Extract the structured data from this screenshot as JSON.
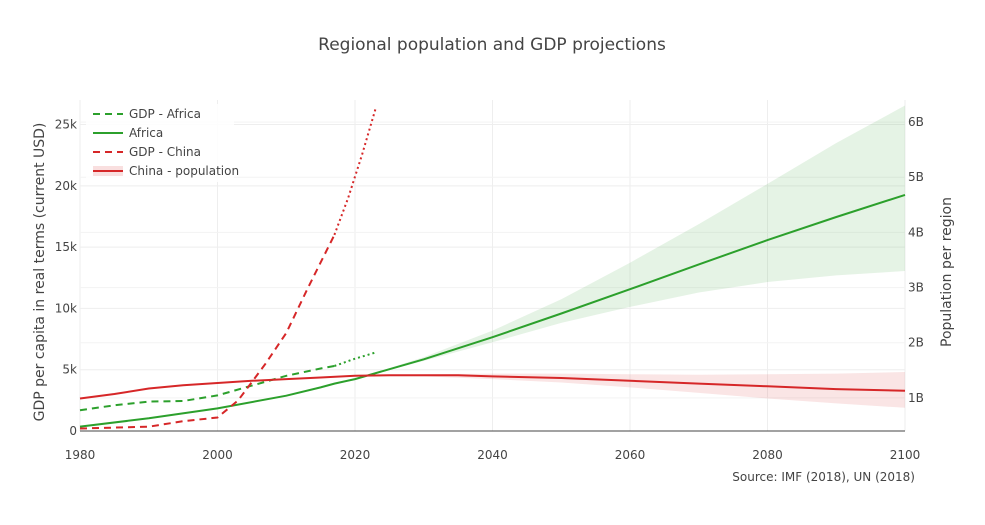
{
  "chart_data": {
    "type": "line",
    "title": "Regional population and GDP projections",
    "source_note": "Source: IMF (2018), UN (2018)",
    "x_axis": {
      "range": [
        1980,
        2100
      ],
      "ticks": [
        1980,
        2000,
        2020,
        2040,
        2060,
        2080,
        2100
      ]
    },
    "y_left": {
      "title": "GDP per capita in real terms (current USD)",
      "range": [
        0,
        27000
      ],
      "ticks": [
        0,
        5000,
        10000,
        15000,
        20000,
        25000
      ],
      "tick_labels": [
        "0",
        "5k",
        "10k",
        "15k",
        "20k",
        "25k"
      ]
    },
    "y_right": {
      "title": "Population per region",
      "range": [
        0.4,
        6.4
      ],
      "ticks": [
        1,
        2,
        3,
        4,
        5,
        6
      ],
      "tick_labels": [
        "1B",
        "2B",
        "3B",
        "4B",
        "5B",
        "6B"
      ]
    },
    "grid": true,
    "legend_position": "top-left",
    "series": [
      {
        "name": "GDP - Africa",
        "axis": "left",
        "color": "#2ca02c",
        "dash": "dashed",
        "x": [
          1980,
          1985,
          1990,
          1995,
          2000,
          2005,
          2010,
          2015,
          2017
        ],
        "y": [
          1700,
          2100,
          2400,
          2450,
          2900,
          3700,
          4500,
          5100,
          5300
        ],
        "projection": {
          "dash": "dotted",
          "x": [
            2017,
            2020,
            2023
          ],
          "y": [
            5300,
            5900,
            6400
          ]
        }
      },
      {
        "name": "Africa",
        "axis": "right",
        "color": "#2ca02c",
        "dash": "solid",
        "x": [
          1980,
          1990,
          2000,
          2010,
          2015,
          2017,
          2020,
          2030,
          2040,
          2050,
          2060,
          2070,
          2080,
          2090,
          2100
        ],
        "y": [
          0.48,
          0.63,
          0.81,
          1.04,
          1.19,
          1.26,
          1.34,
          1.7,
          2.1,
          2.53,
          2.97,
          3.42,
          3.86,
          4.28,
          4.68
        ],
        "band": {
          "x": [
            2017,
            2020,
            2030,
            2040,
            2050,
            2060,
            2070,
            2080,
            2090,
            2100
          ],
          "lower": [
            1.26,
            1.34,
            1.67,
            2.01,
            2.36,
            2.65,
            2.91,
            3.1,
            3.22,
            3.3
          ],
          "upper": [
            1.26,
            1.34,
            1.74,
            2.22,
            2.79,
            3.45,
            4.15,
            4.88,
            5.62,
            6.3
          ]
        }
      },
      {
        "name": "GDP - China",
        "axis": "left",
        "color": "#d62728",
        "dash": "dashed",
        "x": [
          1980,
          1990,
          1995,
          2000,
          2003,
          2005,
          2007,
          2010,
          2013,
          2017
        ],
        "y": [
          200,
          350,
          800,
          1100,
          2500,
          4000,
          5500,
          8000,
          11500,
          16000
        ],
        "projection": {
          "dash": "dotted",
          "x": [
            2017,
            2019,
            2021,
            2023
          ],
          "y": [
            16000,
            19000,
            22500,
            26300
          ]
        }
      },
      {
        "name": "China - population",
        "axis": "right",
        "color": "#d62728",
        "dash": "solid",
        "x": [
          1980,
          1985,
          1990,
          1995,
          2000,
          2005,
          2010,
          2015,
          2020,
          2025,
          2030,
          2035,
          2040,
          2050,
          2060,
          2070,
          2080,
          2090,
          2100
        ],
        "y": [
          0.99,
          1.07,
          1.17,
          1.23,
          1.27,
          1.31,
          1.34,
          1.37,
          1.4,
          1.41,
          1.41,
          1.41,
          1.39,
          1.36,
          1.31,
          1.26,
          1.21,
          1.16,
          1.13
        ],
        "band": {
          "x": [
            2020,
            2030,
            2040,
            2050,
            2060,
            2070,
            2080,
            2090,
            2100
          ],
          "lower": [
            1.4,
            1.39,
            1.34,
            1.28,
            1.19,
            1.09,
            0.99,
            0.9,
            0.82
          ],
          "upper": [
            1.4,
            1.43,
            1.44,
            1.44,
            1.43,
            1.42,
            1.43,
            1.44,
            1.47
          ]
        }
      }
    ]
  }
}
